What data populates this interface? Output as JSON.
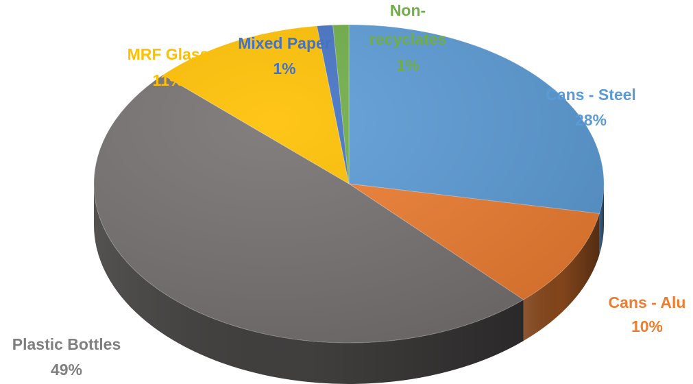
{
  "chart_data": {
    "type": "pie",
    "style": "3d",
    "slices": [
      {
        "label": "Cans - Steel",
        "value": 28,
        "display": "28%",
        "color": "#5b9bd5"
      },
      {
        "label": "Cans - Alu",
        "value": 10,
        "display": "10%",
        "color": "#ed7d31"
      },
      {
        "label": "Plastic Bottles",
        "value": 49,
        "display": "49%",
        "color": "#767171"
      },
      {
        "label": "MRF Glass",
        "value": 11,
        "display": "11%",
        "color": "#ffc000"
      },
      {
        "label": "Mixed Paper",
        "value": 1,
        "display": "1%",
        "color": "#4472c4"
      },
      {
        "label": "Non-recyclates",
        "label_lines": [
          "Non-",
          "recyclates"
        ],
        "value": 1,
        "display": "1%",
        "color": "#70ad47"
      }
    ]
  }
}
